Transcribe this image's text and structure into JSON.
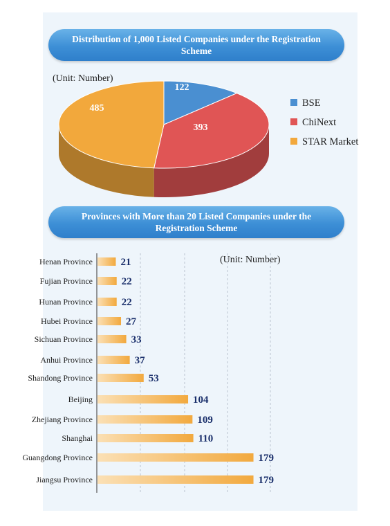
{
  "pie_banner": "Distribution of 1,000 Listed Companies under the Registration Scheme",
  "pie_unit": "(Unit: Number)",
  "bar_banner": "Provinces with More than 20 Listed Companies under the Registration Scheme",
  "bar_unit": "(Unit: Number)",
  "colors": {
    "BSE": "#4a8fd1",
    "ChiNext": "#e05555",
    "STAR Market": "#f2a83c",
    "bar": "#f2a93e",
    "value_label": "#1a2f6b"
  },
  "chart_data": [
    {
      "type": "pie",
      "title": "Distribution of 1,000 Listed Companies under the Registration Scheme",
      "unit": "(Unit: Number)",
      "categories": [
        "BSE",
        "ChiNext",
        "STAR Market"
      ],
      "values": [
        122,
        393,
        485
      ],
      "legend": "right",
      "style": "3d"
    },
    {
      "type": "bar",
      "orientation": "horizontal",
      "title": "Provinces with More than 20 Listed Companies under the Registration Scheme",
      "unit": "(Unit: Number)",
      "categories": [
        "Henan Province",
        "Fujian Province",
        "Hunan Province",
        "Hubei Province",
        "Sichuan Province",
        "Anhui Province",
        "Shandong Province",
        "Beijing",
        "Zhejiang Province",
        "Shanghai",
        "Guangdong Province",
        "Jiangsu Province"
      ],
      "values": [
        21,
        22,
        22,
        27,
        33,
        37,
        53,
        104,
        109,
        110,
        179,
        179
      ],
      "xlim": [
        0,
        200
      ],
      "grid": "vertical dashed"
    }
  ]
}
